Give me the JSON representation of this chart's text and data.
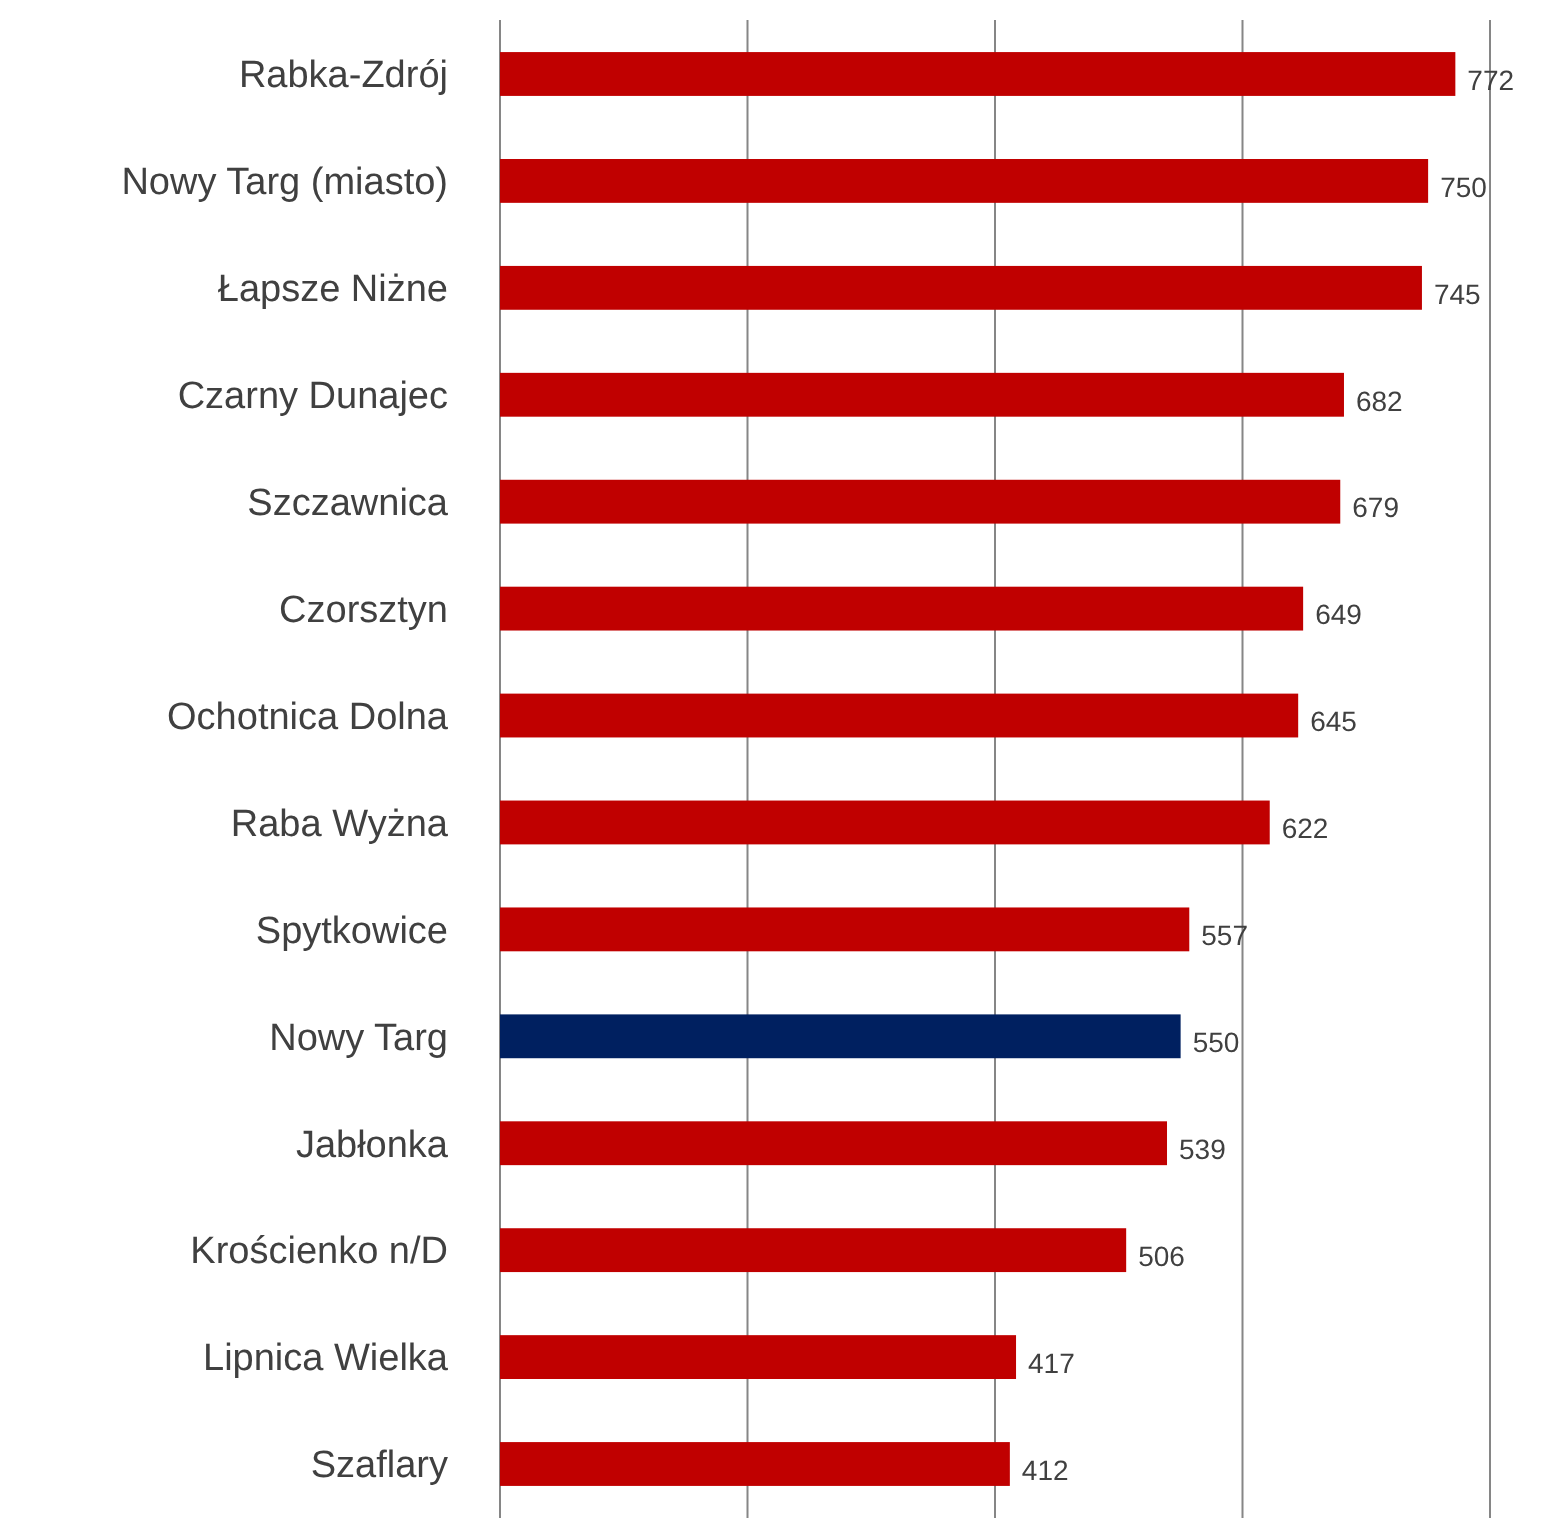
{
  "chart_data": {
    "type": "bar",
    "orientation": "horizontal",
    "categories": [
      "Rabka-Zdrój",
      "Nowy Targ (miasto)",
      "Łapsze Niżne",
      "Czarny Dunajec",
      "Szczawnica",
      "Czorsztyn",
      "Ochotnica Dolna",
      "Raba Wyżna",
      "Spytkowice",
      "Nowy Targ",
      "Jabłonka",
      "Krościenko n/D",
      "Lipnica Wielka",
      "Szaflary"
    ],
    "values": [
      772,
      750,
      745,
      682,
      679,
      649,
      645,
      622,
      557,
      550,
      539,
      506,
      417,
      412
    ],
    "colors": [
      "#c00000",
      "#c00000",
      "#c00000",
      "#c00000",
      "#c00000",
      "#c00000",
      "#c00000",
      "#c00000",
      "#c00000",
      "#002060",
      "#c00000",
      "#c00000",
      "#c00000",
      "#c00000"
    ],
    "xlim": [
      0,
      800
    ],
    "xticks": [
      {
        "value": 0,
        "label": null
      },
      {
        "value": 200,
        "label": null
      },
      {
        "value": 400,
        "label": null
      },
      {
        "value": 600,
        "label": null
      },
      {
        "value": 800,
        "label": null
      }
    ],
    "grid": "x",
    "tick_labels": "y",
    "data_labels": true
  }
}
